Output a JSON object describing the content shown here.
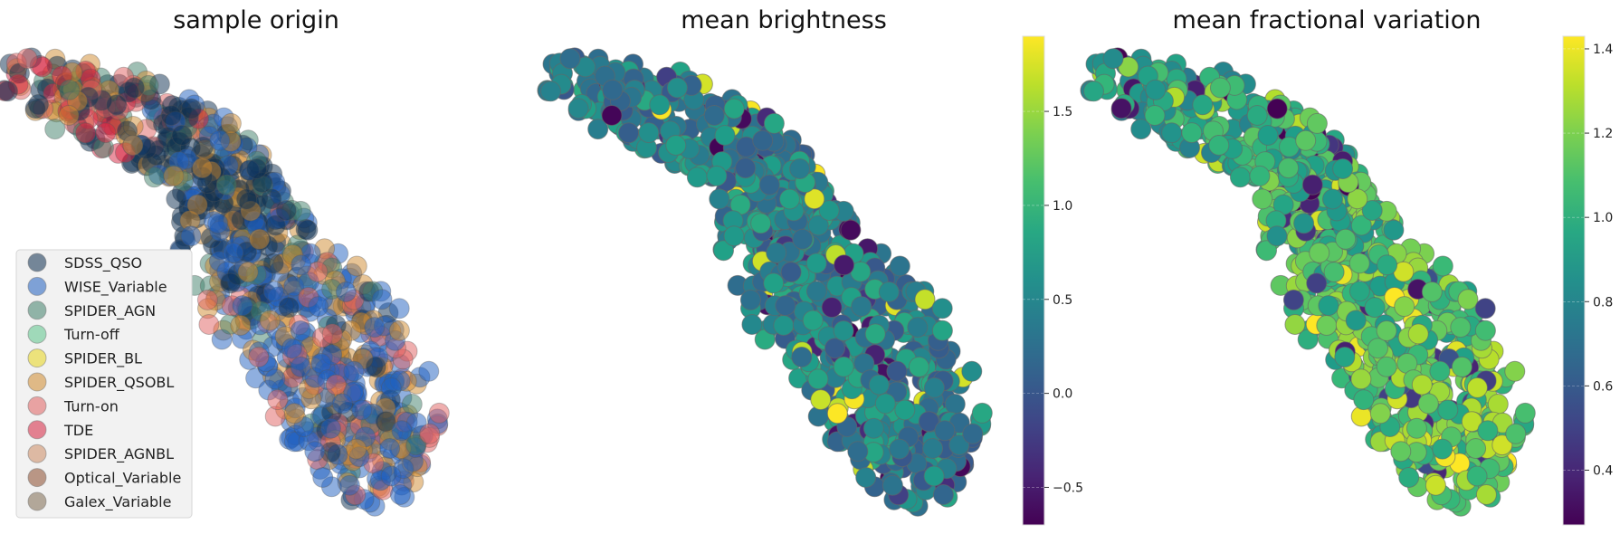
{
  "chart_data": [
    {
      "type": "scatter",
      "title": "sample origin",
      "xlabel": "",
      "ylabel": "",
      "grid": false,
      "legend_position": "lower-left",
      "legend": [
        {
          "name": "SDSS_QSO",
          "color": "#0c2d4f"
        },
        {
          "name": "WISE_Variable",
          "color": "#1f5fbf"
        },
        {
          "name": "SPIDER_AGN",
          "color": "#3f7f6a"
        },
        {
          "name": "Turn-off",
          "color": "#5bc58a"
        },
        {
          "name": "SPIDER_BL",
          "color": "#e8d51a"
        },
        {
          "name": "SPIDER_QSOBL",
          "color": "#d08a2e"
        },
        {
          "name": "Turn-on",
          "color": "#e06060"
        },
        {
          "name": "TDE",
          "color": "#d6233f"
        },
        {
          "name": "SPIDER_AGNBL",
          "color": "#cc8a63"
        },
        {
          "name": "Optical_Variable",
          "color": "#8b4a2c"
        },
        {
          "name": "Galex_Variable",
          "color": "#7d6a50"
        }
      ],
      "point_color_sources": [
        "SDSS_QSO",
        "WISE_Variable",
        "SPIDER_AGN",
        "SPIDER_QSOBL",
        "Turn-on",
        "TDE"
      ]
    },
    {
      "type": "scatter",
      "title": "mean brightness",
      "xlabel": "",
      "ylabel": "",
      "grid": false,
      "colormap": "viridis",
      "colorbar": {
        "range": [
          -0.7,
          1.9
        ],
        "ticks": [
          -0.5,
          0.0,
          0.5,
          1.0,
          1.5
        ],
        "tick_labels": [
          "−0.5",
          "0.0",
          "0.5",
          "1.0",
          "1.5"
        ]
      },
      "value_bias": 0.45
    },
    {
      "type": "scatter",
      "title": "mean fractional variation",
      "xlabel": "",
      "ylabel": "",
      "grid": false,
      "colormap": "viridis",
      "colorbar": {
        "range": [
          0.27,
          1.43
        ],
        "ticks": [
          0.4,
          0.6,
          0.8,
          1.0,
          1.2,
          1.4
        ],
        "tick_labels": [
          "0.4",
          "0.6",
          "0.8",
          "1.0",
          "1.2",
          "1.4"
        ]
      },
      "value_bias": 1.05
    }
  ]
}
